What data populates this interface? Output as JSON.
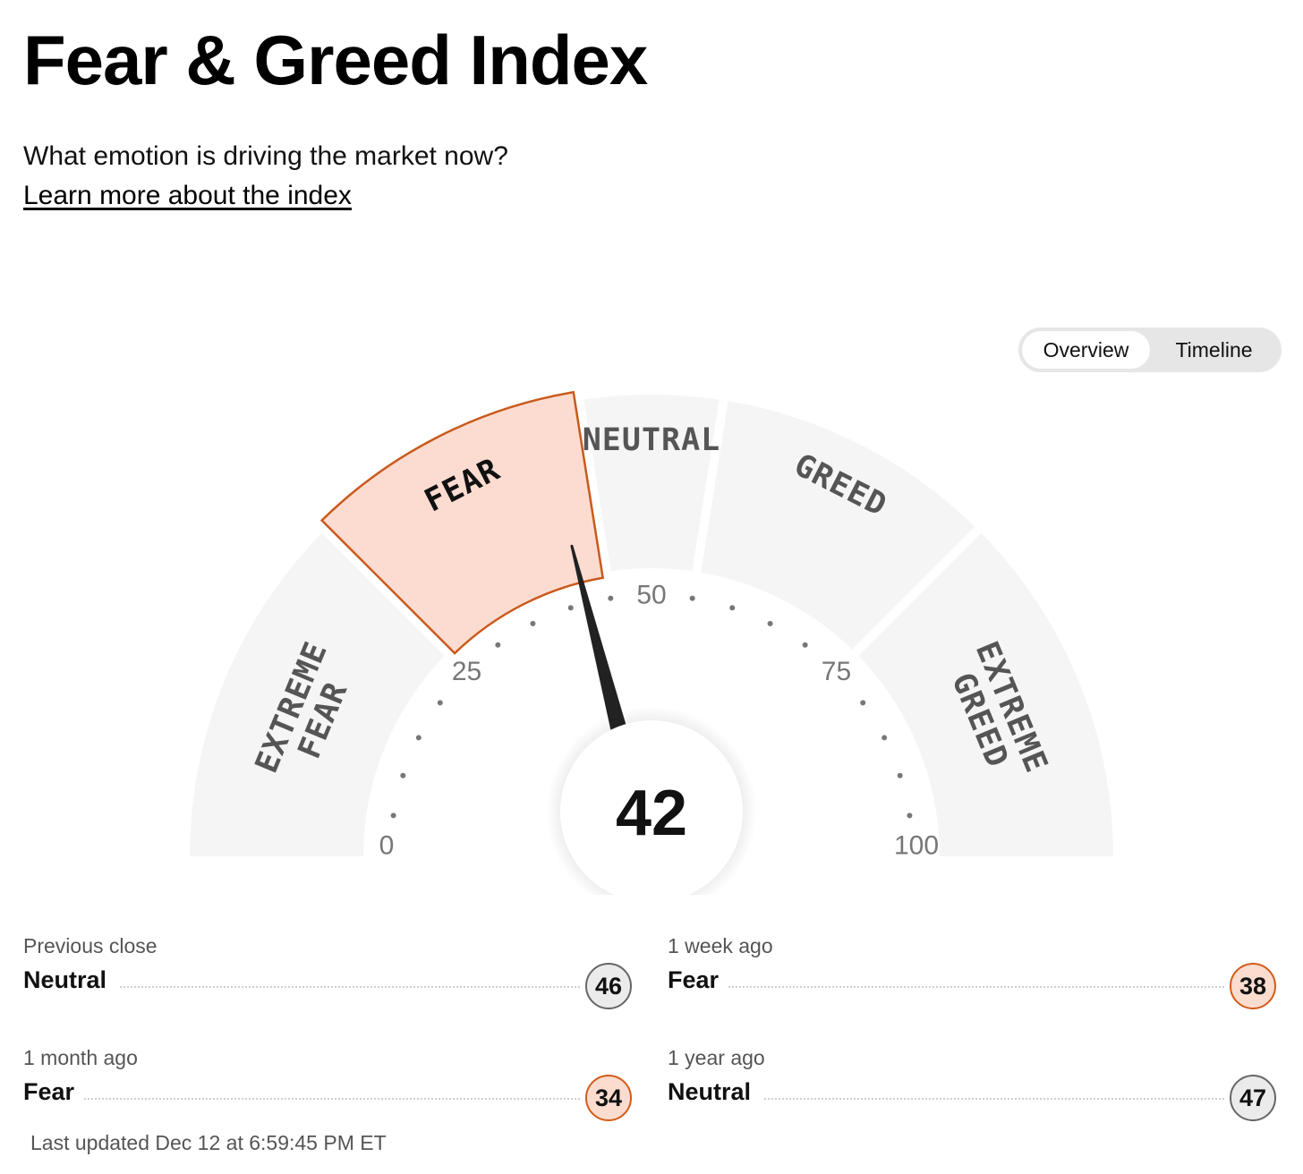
{
  "header": {
    "title": "Fear & Greed Index",
    "subtitle": "What emotion is driving the market now?",
    "learn_more": "Learn more about the index"
  },
  "tabs": [
    {
      "label": "Overview",
      "active": true
    },
    {
      "label": "Timeline",
      "active": false
    }
  ],
  "gauge": {
    "score": 42,
    "range": [
      0,
      100
    ],
    "active_segment": "fear",
    "segments": [
      {
        "id": "extreme-fear",
        "lines": [
          "EXTREME",
          "FEAR"
        ],
        "range": [
          0,
          25
        ]
      },
      {
        "id": "fear",
        "lines": [
          "FEAR"
        ],
        "range": [
          25,
          45
        ]
      },
      {
        "id": "neutral",
        "lines": [
          "NEUTRAL"
        ],
        "range": [
          45,
          55
        ]
      },
      {
        "id": "greed",
        "lines": [
          "GREED"
        ],
        "range": [
          55,
          75
        ]
      },
      {
        "id": "extreme-greed",
        "lines": [
          "EXTREME",
          "GREED"
        ],
        "range": [
          75,
          100
        ]
      }
    ],
    "tick_labels": [
      "0",
      "25",
      "50",
      "75",
      "100"
    ],
    "colors": {
      "segment": "#f5f5f5",
      "active_fill": "#fcdcd0",
      "active_stroke": "#c95a1c",
      "needle": "#222222"
    }
  },
  "history": [
    {
      "period": "Previous close",
      "rating": "Neutral",
      "value": "46",
      "type": "neutral"
    },
    {
      "period": "1 week ago",
      "rating": "Fear",
      "value": "38",
      "type": "fear"
    },
    {
      "period": "1 month ago",
      "rating": "Fear",
      "value": "34",
      "type": "fear"
    },
    {
      "period": "1 year ago",
      "rating": "Neutral",
      "value": "47",
      "type": "neutral"
    }
  ],
  "last_updated": "Last updated Dec 12 at 6:59:45 PM ET"
}
